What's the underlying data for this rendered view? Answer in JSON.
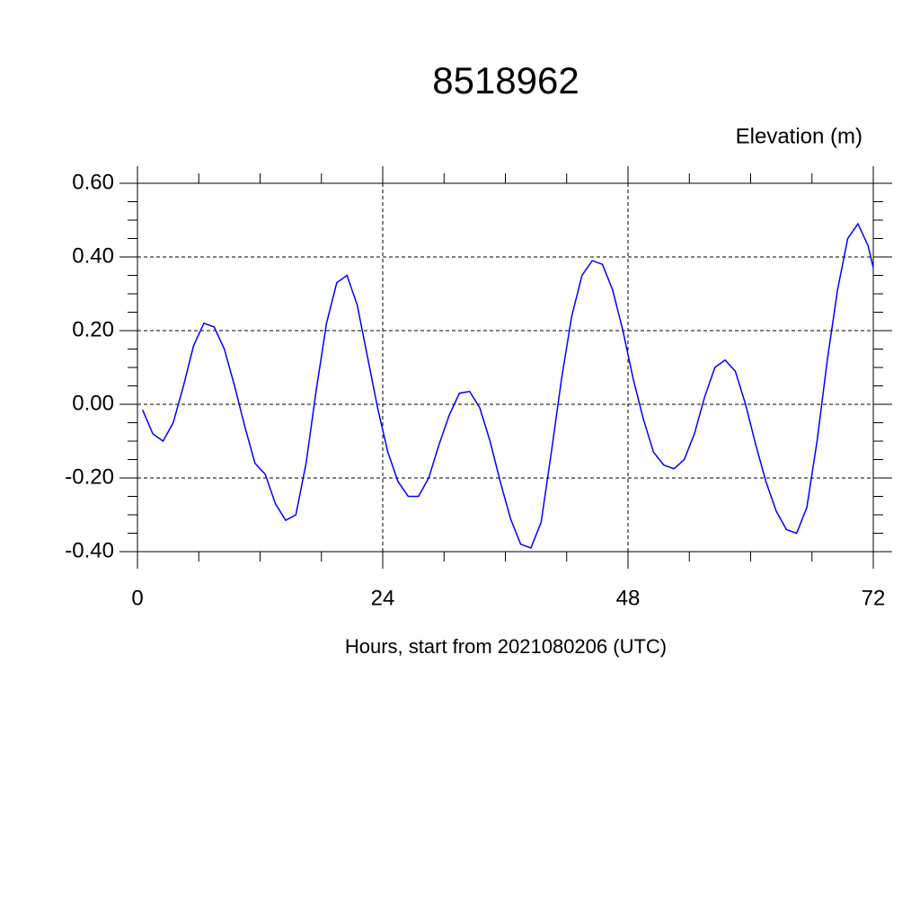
{
  "chart_data": {
    "type": "line",
    "title": "8518962",
    "subtitle": "Elevation (m)",
    "x_label": "Hours, start from 2021080206 (UTC)",
    "x": [
      0.5,
      1.5,
      2.5,
      3.5,
      4.5,
      5.5,
      6.5,
      7.5,
      8.5,
      9.5,
      10.5,
      11.5,
      12.5,
      13.5,
      14.5,
      15.5,
      16.5,
      17.5,
      18.5,
      19.5,
      20.5,
      21.5,
      22.5,
      23.5,
      24.5,
      25.5,
      26.5,
      27.5,
      28.5,
      29.5,
      30.5,
      31.5,
      32.5,
      33.5,
      34.5,
      35.5,
      36.5,
      37.5,
      38.5,
      39.5,
      40.5,
      41.5,
      42.5,
      43.5,
      44.5,
      45.5,
      46.5,
      47.5,
      48.5,
      49.5,
      50.5,
      51.5,
      52.5,
      53.5,
      54.5,
      55.5,
      56.5,
      57.5,
      58.5,
      59.5,
      60.5,
      61.5,
      62.5,
      63.5,
      64.5,
      65.5,
      66.5,
      67.5,
      68.5,
      69.5,
      70.5,
      71.5,
      72
    ],
    "series": [
      {
        "color": "#0000ff",
        "values": [
          -0.015,
          -0.08,
          -0.1,
          -0.05,
          0.05,
          0.16,
          0.22,
          0.21,
          0.15,
          0.05,
          -0.06,
          -0.16,
          -0.19,
          -0.27,
          -0.315,
          -0.3,
          -0.16,
          0.04,
          0.22,
          0.33,
          0.35,
          0.27,
          0.13,
          -0.01,
          -0.13,
          -0.21,
          -0.25,
          -0.25,
          -0.2,
          -0.11,
          -0.03,
          0.03,
          0.035,
          -0.01,
          -0.1,
          -0.21,
          -0.31,
          -0.38,
          -0.39,
          -0.32,
          -0.13,
          0.07,
          0.24,
          0.35,
          0.39,
          0.38,
          0.31,
          0.2,
          0.07,
          -0.04,
          -0.13,
          -0.165,
          -0.175,
          -0.15,
          -0.08,
          0.02,
          0.1,
          0.12,
          0.09,
          0.0,
          -0.11,
          -0.21,
          -0.29,
          -0.34,
          -0.35,
          -0.28,
          -0.1,
          0.12,
          0.31,
          0.45,
          0.49,
          0.43,
          0.37
        ]
      }
    ],
    "xlim": [
      0,
      72
    ],
    "xticks": [
      0,
      24,
      48,
      72
    ],
    "ylim": [
      -0.4,
      0.6
    ],
    "yticks": [
      {
        "value": 0.6,
        "label": "0.60"
      },
      {
        "value": 0.4,
        "label": "0.40"
      },
      {
        "value": 0.2,
        "label": "0.20"
      },
      {
        "value": 0,
        "label": "0.00"
      },
      {
        "value": -0.2,
        "label": "-0.20"
      },
      {
        "value": -0.4,
        "label": "-0.40"
      }
    ],
    "grid": true
  }
}
